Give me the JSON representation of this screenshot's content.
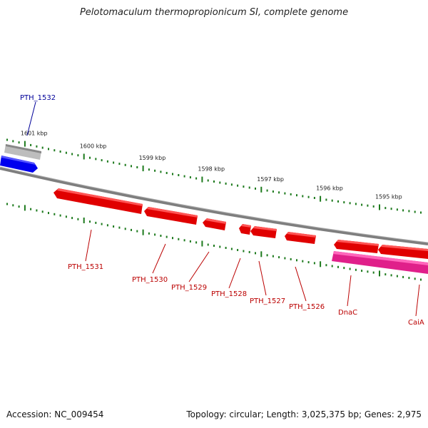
{
  "title": "Pelotomaculum thermopropionicum SI, complete genome",
  "footer": {
    "accession": "Accession: NC_009454",
    "summary": "Topology: circular; Length: 3,025,375 bp; Genes: 2,975"
  },
  "colors": {
    "backbone": "#8a8a8a",
    "tick": "#1d7a1d",
    "gene_forward": "#0000ee",
    "gene_forward_label": "#000099",
    "gene_reverse": "#ee0000",
    "gene_reverse_label": "#bb0000",
    "gene_highlight": "#e0208a",
    "pseudo": "#b8b8b8"
  },
  "ticks": [
    {
      "label": "1601 kbp"
    },
    {
      "label": "1600 kbp"
    },
    {
      "label": "1599 kbp"
    },
    {
      "label": "1598 kbp"
    },
    {
      "label": "1597 kbp"
    },
    {
      "label": "1596 kbp"
    },
    {
      "label": "1595 kbp"
    }
  ],
  "genes": [
    {
      "name": "PTH_1532",
      "strand": "forward",
      "track": "forward"
    },
    {
      "name": "PTH_1531",
      "strand": "reverse",
      "track": "reverse"
    },
    {
      "name": "PTH_1530",
      "strand": "reverse",
      "track": "reverse"
    },
    {
      "name": "PTH_1529",
      "strand": "reverse",
      "track": "reverse"
    },
    {
      "name": "PTH_1528",
      "strand": "reverse",
      "track": "reverse"
    },
    {
      "name": "PTH_1527",
      "strand": "reverse",
      "track": "reverse"
    },
    {
      "name": "PTH_1526",
      "strand": "reverse",
      "track": "reverse"
    },
    {
      "name": "DnaC",
      "strand": "reverse",
      "track": "reverse"
    },
    {
      "name": "CaiA",
      "strand": "reverse",
      "track": "highlight"
    }
  ]
}
